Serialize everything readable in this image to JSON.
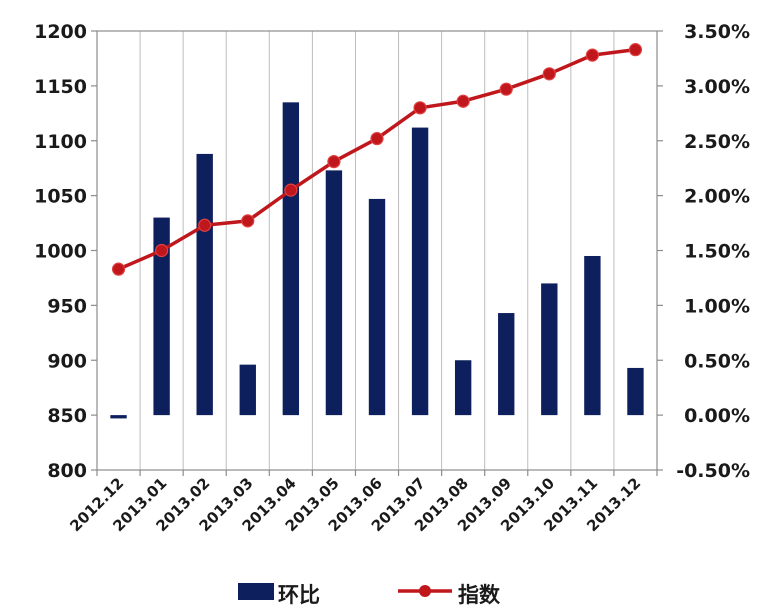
{
  "chart_data": {
    "type": "bar+line",
    "title": "",
    "categories": [
      "2012.12",
      "2013.01",
      "2013.02",
      "2013.03",
      "2013.04",
      "2013.05",
      "2013.06",
      "2013.07",
      "2013.08",
      "2013.09",
      "2013.10",
      "2013.11",
      "2013.12"
    ],
    "series": [
      {
        "name": "环比",
        "type": "bar",
        "axis": "right",
        "color": "#0d1f5c",
        "values": [
          -0.03,
          1.8,
          2.38,
          0.46,
          2.85,
          2.23,
          1.97,
          2.62,
          0.5,
          0.93,
          1.2,
          1.45,
          0.43
        ]
      },
      {
        "name": "指数",
        "type": "line",
        "axis": "left",
        "color": "#c0171d",
        "values": [
          983,
          1000,
          1023,
          1027,
          1055,
          1081,
          1102,
          1130,
          1136,
          1147,
          1161,
          1178,
          1183
        ]
      }
    ],
    "y_left": {
      "min": 800,
      "max": 1200,
      "ticks": [
        "1200",
        "1150",
        "1100",
        "1050",
        "1000",
        "950",
        "900",
        "850",
        "800"
      ]
    },
    "y_right": {
      "min": -0.5,
      "max": 3.5,
      "ticks": [
        "3.50%",
        "3.00%",
        "2.50%",
        "2.00%",
        "1.50%",
        "1.00%",
        "0.50%",
        "0.00%",
        "-0.50%"
      ]
    },
    "grid": "vertical",
    "legend_position": "bottom"
  }
}
